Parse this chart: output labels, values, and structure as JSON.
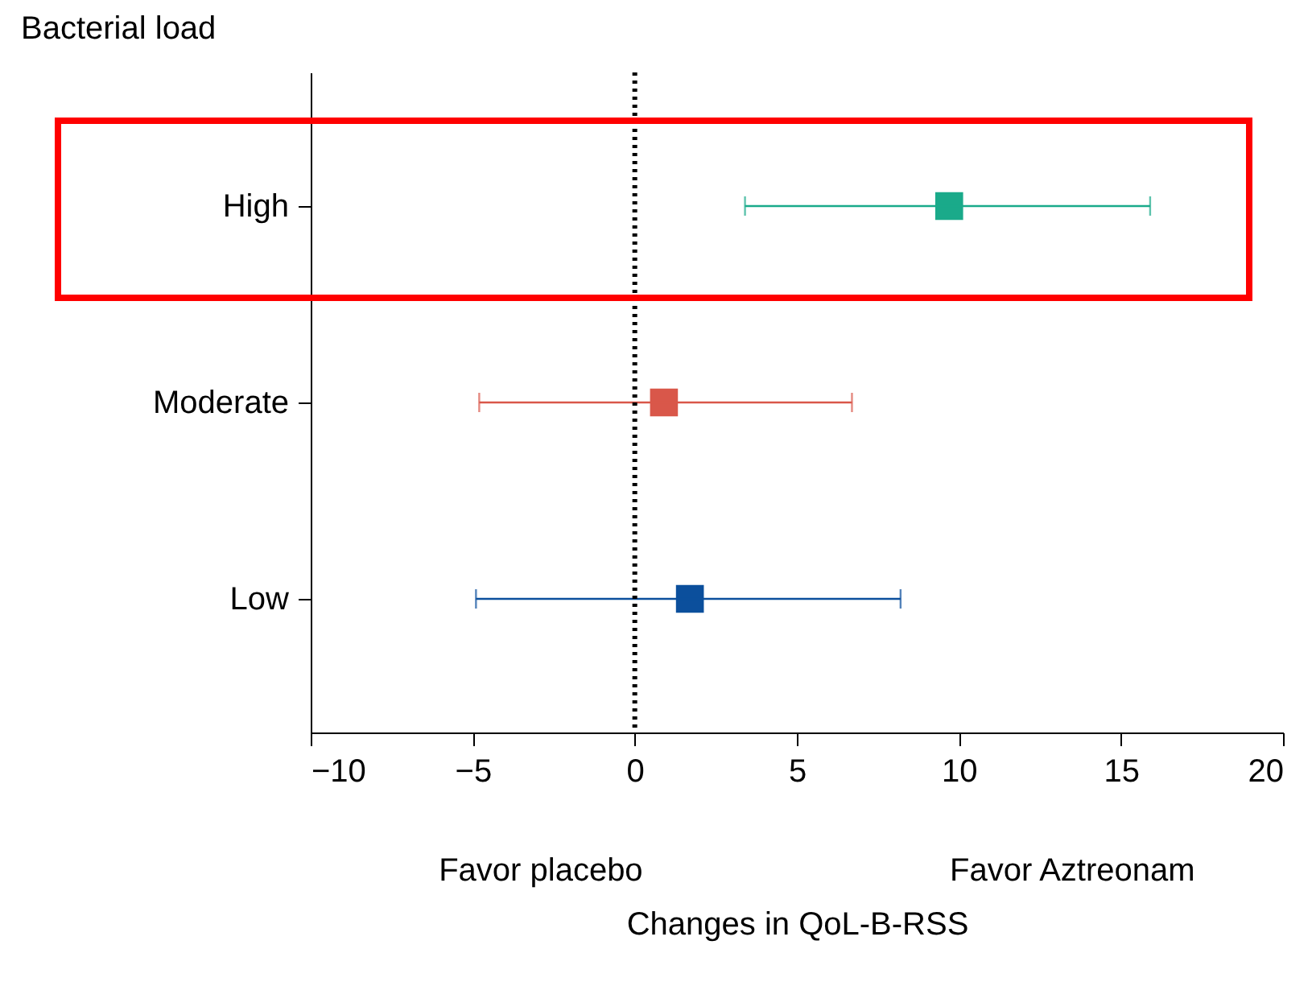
{
  "chart_data": {
    "type": "scatter",
    "orientation": "horizontal",
    "ylabel": "Bacterial load",
    "xlabel": "Changes in QoL-B-RSS",
    "categories": [
      "High",
      "Moderate",
      "Low"
    ],
    "values": [
      9.7,
      0.9,
      1.7
    ],
    "errors": [
      [
        3.4,
        15.9
      ],
      [
        -4.8,
        6.7
      ],
      [
        -4.9,
        8.2
      ]
    ],
    "colors": [
      "#1aaa8a",
      "#d9574a",
      "#0b4f9c"
    ],
    "marker": "square",
    "xlim": [
      -10,
      20
    ],
    "xticks": [
      {
        "value": -10,
        "label": "−10"
      },
      {
        "value": -5,
        "label": "−5"
      },
      0,
      5,
      10,
      15,
      20
    ],
    "ref_lines": [
      {
        "axis": "x",
        "value": 0,
        "line_style": "dotted",
        "color": "#000000"
      }
    ],
    "annotations": [
      "Favor placebo",
      "Favor Aztreonam"
    ],
    "grid": false
  }
}
